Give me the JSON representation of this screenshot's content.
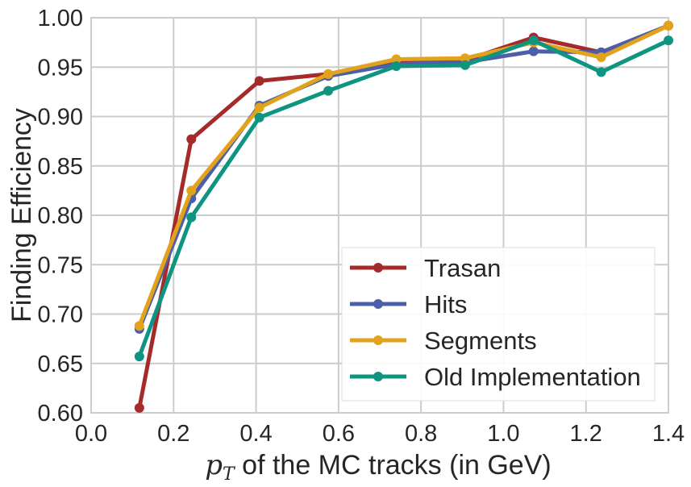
{
  "chart_data": {
    "type": "line",
    "xlabel_symbol": "p",
    "xlabel_subscript": "T",
    "xlabel_text": " of the MC tracks (in GeV)",
    "ylabel": "Finding Efficiency",
    "xlim": [
      0.0,
      1.4
    ],
    "ylim": [
      0.6,
      1.0
    ],
    "xticks": [
      "0.0",
      "0.2",
      "0.4",
      "0.6",
      "0.8",
      "1.0",
      "1.2",
      "1.4"
    ],
    "yticks": [
      "0.60",
      "0.65",
      "0.70",
      "0.75",
      "0.80",
      "0.85",
      "0.90",
      "0.95",
      "1.00"
    ],
    "grid": true,
    "legend_position": "lower-right",
    "x": [
      0.117,
      0.243,
      0.408,
      0.575,
      0.74,
      0.907,
      1.073,
      1.237,
      1.4
    ],
    "series": [
      {
        "name": "Trasan",
        "color": "#a52a2a",
        "values": [
          0.605,
          0.877,
          0.936,
          0.943,
          0.955,
          0.957,
          0.98,
          0.965,
          0.992
        ]
      },
      {
        "name": "Hits",
        "color": "#4c5fa8",
        "values": [
          0.685,
          0.817,
          0.911,
          0.941,
          0.953,
          0.955,
          0.966,
          0.965,
          0.992
        ]
      },
      {
        "name": "Segments",
        "color": "#e3a21c",
        "values": [
          0.688,
          0.825,
          0.909,
          0.943,
          0.958,
          0.959,
          0.975,
          0.96,
          0.992
        ]
      },
      {
        "name": "Old Implementation",
        "color": "#0e9480",
        "values": [
          0.657,
          0.798,
          0.899,
          0.926,
          0.951,
          0.952,
          0.977,
          0.945,
          0.977
        ]
      }
    ]
  }
}
